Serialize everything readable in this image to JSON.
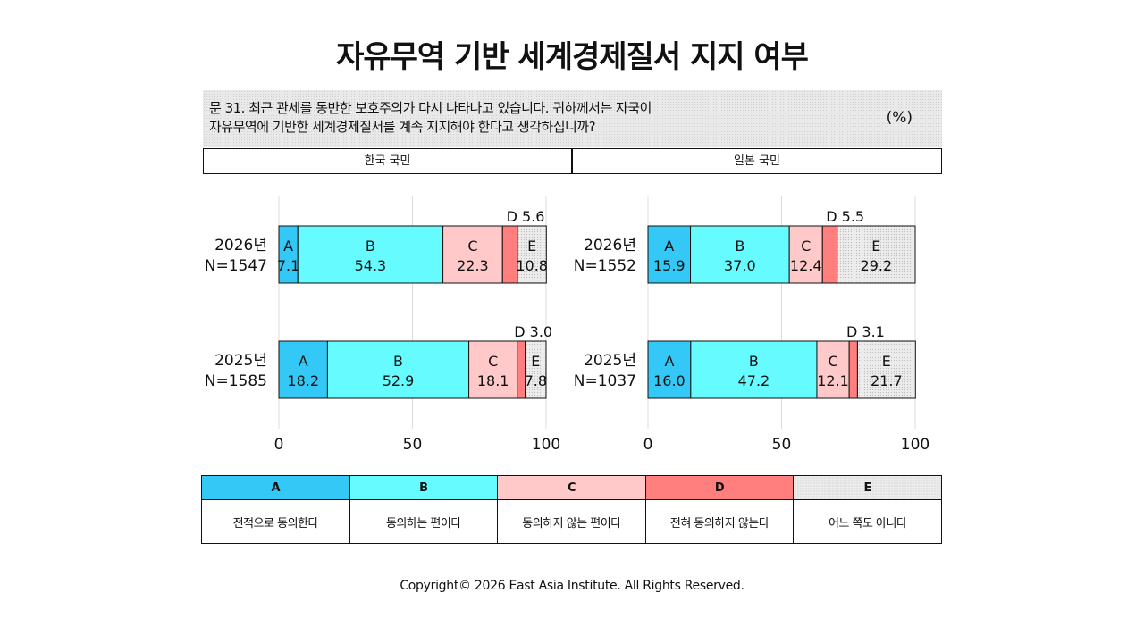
{
  "title": "자유무역 기반 세계경제질서 지지 여부",
  "question": {
    "line1": "문 31. 최근 관세를 동반한 보호주의가 다시 나타나고 있습니다. 귀하께서는 자국이",
    "line2": "자유무역에 기반한 세계경제질서를 계속 지지해야 한다고 생각하십니까?",
    "unit": "(%)"
  },
  "panels": {
    "left_label": "한국 국민",
    "right_label": "일본 국민"
  },
  "colors": {
    "A": "#33c8f5",
    "B": "#66fbff",
    "C": "#ffc9c9",
    "D": "#ff7f7f",
    "E": "#ececec"
  },
  "legend": {
    "keys": [
      "A",
      "B",
      "C",
      "D",
      "E"
    ],
    "labels": [
      "전적으로 동의한다",
      "동의하는 편이다",
      "동의하지 않는 편이다",
      "전혀 동의하지 않는다",
      "어느 쪽도 아니다"
    ]
  },
  "chart_data": [
    {
      "type": "bar",
      "orientation": "horizontal-stacked",
      "panel": "한국 국민",
      "xlim": [
        0,
        100
      ],
      "xticks": [
        "0",
        "50",
        "100"
      ],
      "categories": [
        {
          "year": "2026년",
          "n": "N=1547"
        },
        {
          "year": "2025년",
          "n": "N=1585"
        }
      ],
      "series": [
        {
          "name": "A",
          "values": [
            7.1,
            18.2
          ]
        },
        {
          "name": "B",
          "values": [
            54.3,
            52.9
          ]
        },
        {
          "name": "C",
          "values": [
            22.3,
            18.1
          ]
        },
        {
          "name": "D",
          "values": [
            5.6,
            3.0
          ]
        },
        {
          "name": "E",
          "values": [
            10.8,
            7.8
          ]
        }
      ]
    },
    {
      "type": "bar",
      "orientation": "horizontal-stacked",
      "panel": "일본 국민",
      "xlim": [
        0,
        100
      ],
      "xticks": [
        "0",
        "50",
        "100"
      ],
      "categories": [
        {
          "year": "2026년",
          "n": "N=1552"
        },
        {
          "year": "2025년",
          "n": "N=1037"
        }
      ],
      "series": [
        {
          "name": "A",
          "values": [
            15.9,
            16.0
          ]
        },
        {
          "name": "B",
          "values": [
            37.0,
            47.2
          ]
        },
        {
          "name": "C",
          "values": [
            12.4,
            12.1
          ]
        },
        {
          "name": "D",
          "values": [
            5.5,
            3.1
          ]
        },
        {
          "name": "E",
          "values": [
            29.2,
            21.7
          ]
        }
      ]
    }
  ],
  "footer": "Copyright© 2026 East Asia Institute. All Rights Reserved."
}
